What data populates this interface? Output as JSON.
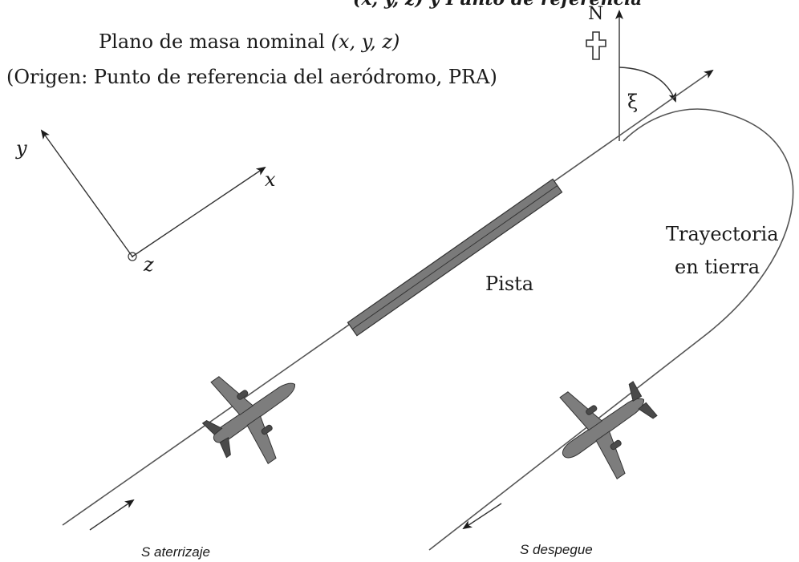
{
  "header_line": "(x, y, z) y Punto de referencia",
  "plane_title": {
    "line1_prefix": "Plano de masa nominal ",
    "line1_coords": "(x, y, z)",
    "line2": "(Origen: Punto de referencia del aeródromo, PRA)"
  },
  "axes": {
    "y_label": "y",
    "x_label": "x",
    "z_label": "z"
  },
  "north": {
    "label": "N",
    "angle_label": "ξ",
    "compass_icon": "cross-compass-icon"
  },
  "labels": {
    "runway": "Pista",
    "ground_track_line1": "Trayectoria",
    "ground_track_line2": "en tierra",
    "landing": "S aterrizaje",
    "takeoff": "S despegue"
  },
  "colors": {
    "runway_fill": "#7a7a7a",
    "line": "#555555",
    "plane": "#7d7d7d"
  }
}
